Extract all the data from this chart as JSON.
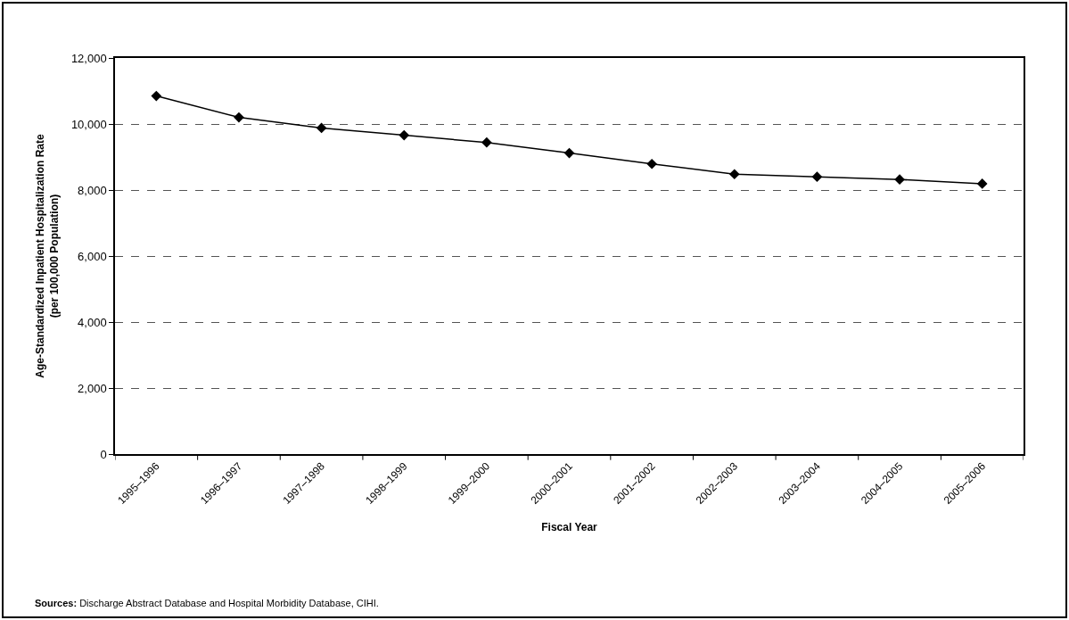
{
  "chart_data": {
    "type": "line",
    "xlabel": "Fiscal Year",
    "ylabel": "Age-Standardized Inpatient Hospitalization Rate\n(per 100,000 Population)",
    "categories": [
      "1995–1996",
      "1996–1997",
      "1997–1998",
      "1998–1999",
      "1999–2000",
      "2000–2001",
      "2001–2002",
      "2002–2003",
      "2003–2004",
      "2004–2005",
      "2005–2006"
    ],
    "series": [
      {
        "color": "#000000",
        "values": [
          10850,
          10200,
          9880,
          9660,
          9440,
          9120,
          8790,
          8480,
          8400,
          8320,
          8190
        ]
      }
    ],
    "ylim": [
      0,
      12000
    ],
    "yticks": [
      {
        "value": 0,
        "label": "0"
      },
      {
        "value": 2000,
        "label": "2,000"
      },
      {
        "value": 4000,
        "label": "4,000"
      },
      {
        "value": 6000,
        "label": "6,000"
      },
      {
        "value": 8000,
        "label": "8,000"
      },
      {
        "value": 10000,
        "label": "10,000"
      },
      {
        "value": 12000,
        "label": "12,000"
      }
    ],
    "grid": "y",
    "marker": "diamond",
    "line_style": "solid",
    "annotations": [
      "Sources: Discharge Abstract Database and Hospital Morbidity Database, CIHI."
    ]
  }
}
